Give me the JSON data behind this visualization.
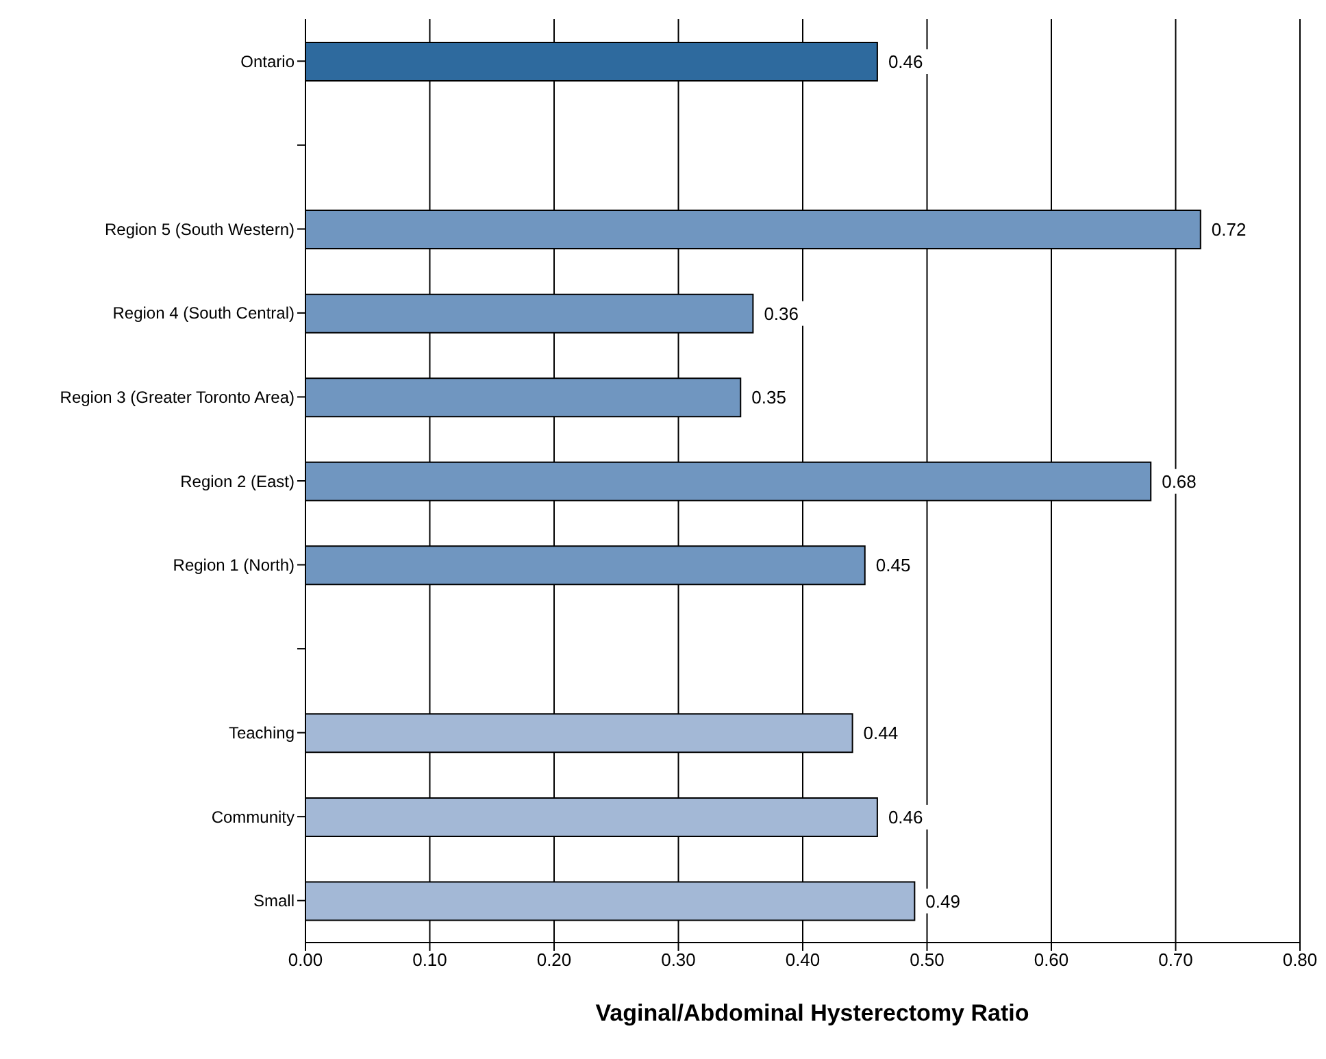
{
  "chart_data": {
    "type": "bar",
    "orientation": "horizontal",
    "xlabel": "Vaginal/Abdominal Hysterectomy Ratio",
    "categories": [
      "Ontario",
      null,
      "Region 5 (South Western)",
      "Region 4 (South Central)",
      "Region 3 (Greater Toronto Area)",
      "Region 2 (East)",
      "Region 1 (North)",
      null,
      "Teaching",
      "Community",
      "Small"
    ],
    "values": [
      0.46,
      null,
      0.72,
      0.36,
      0.35,
      0.68,
      0.45,
      null,
      0.44,
      0.46,
      0.49
    ],
    "colors": [
      "#2e6a9e",
      "#7096c0",
      "#7096c0",
      "#7096c0",
      "#7096c0",
      "#7096c0",
      "#7096c0",
      "#a3b8d6",
      "#a3b8d6",
      "#a3b8d6",
      "#a3b8d6"
    ],
    "xlim": [
      0,
      0.8
    ],
    "xticks": [
      {
        "value": 0,
        "label": "0.00"
      },
      {
        "value": 0.1,
        "label": "0.10"
      },
      {
        "value": 0.2,
        "label": "0.20"
      },
      {
        "value": 0.3,
        "label": "0.30"
      },
      {
        "value": 0.4,
        "label": "0.40"
      },
      {
        "value": 0.5,
        "label": "0.50"
      },
      {
        "value": 0.6,
        "label": "0.60"
      },
      {
        "value": 0.7,
        "label": "0.70"
      },
      {
        "value": 0.8,
        "label": "0.80"
      }
    ],
    "grid": "x",
    "data_labels": true
  }
}
